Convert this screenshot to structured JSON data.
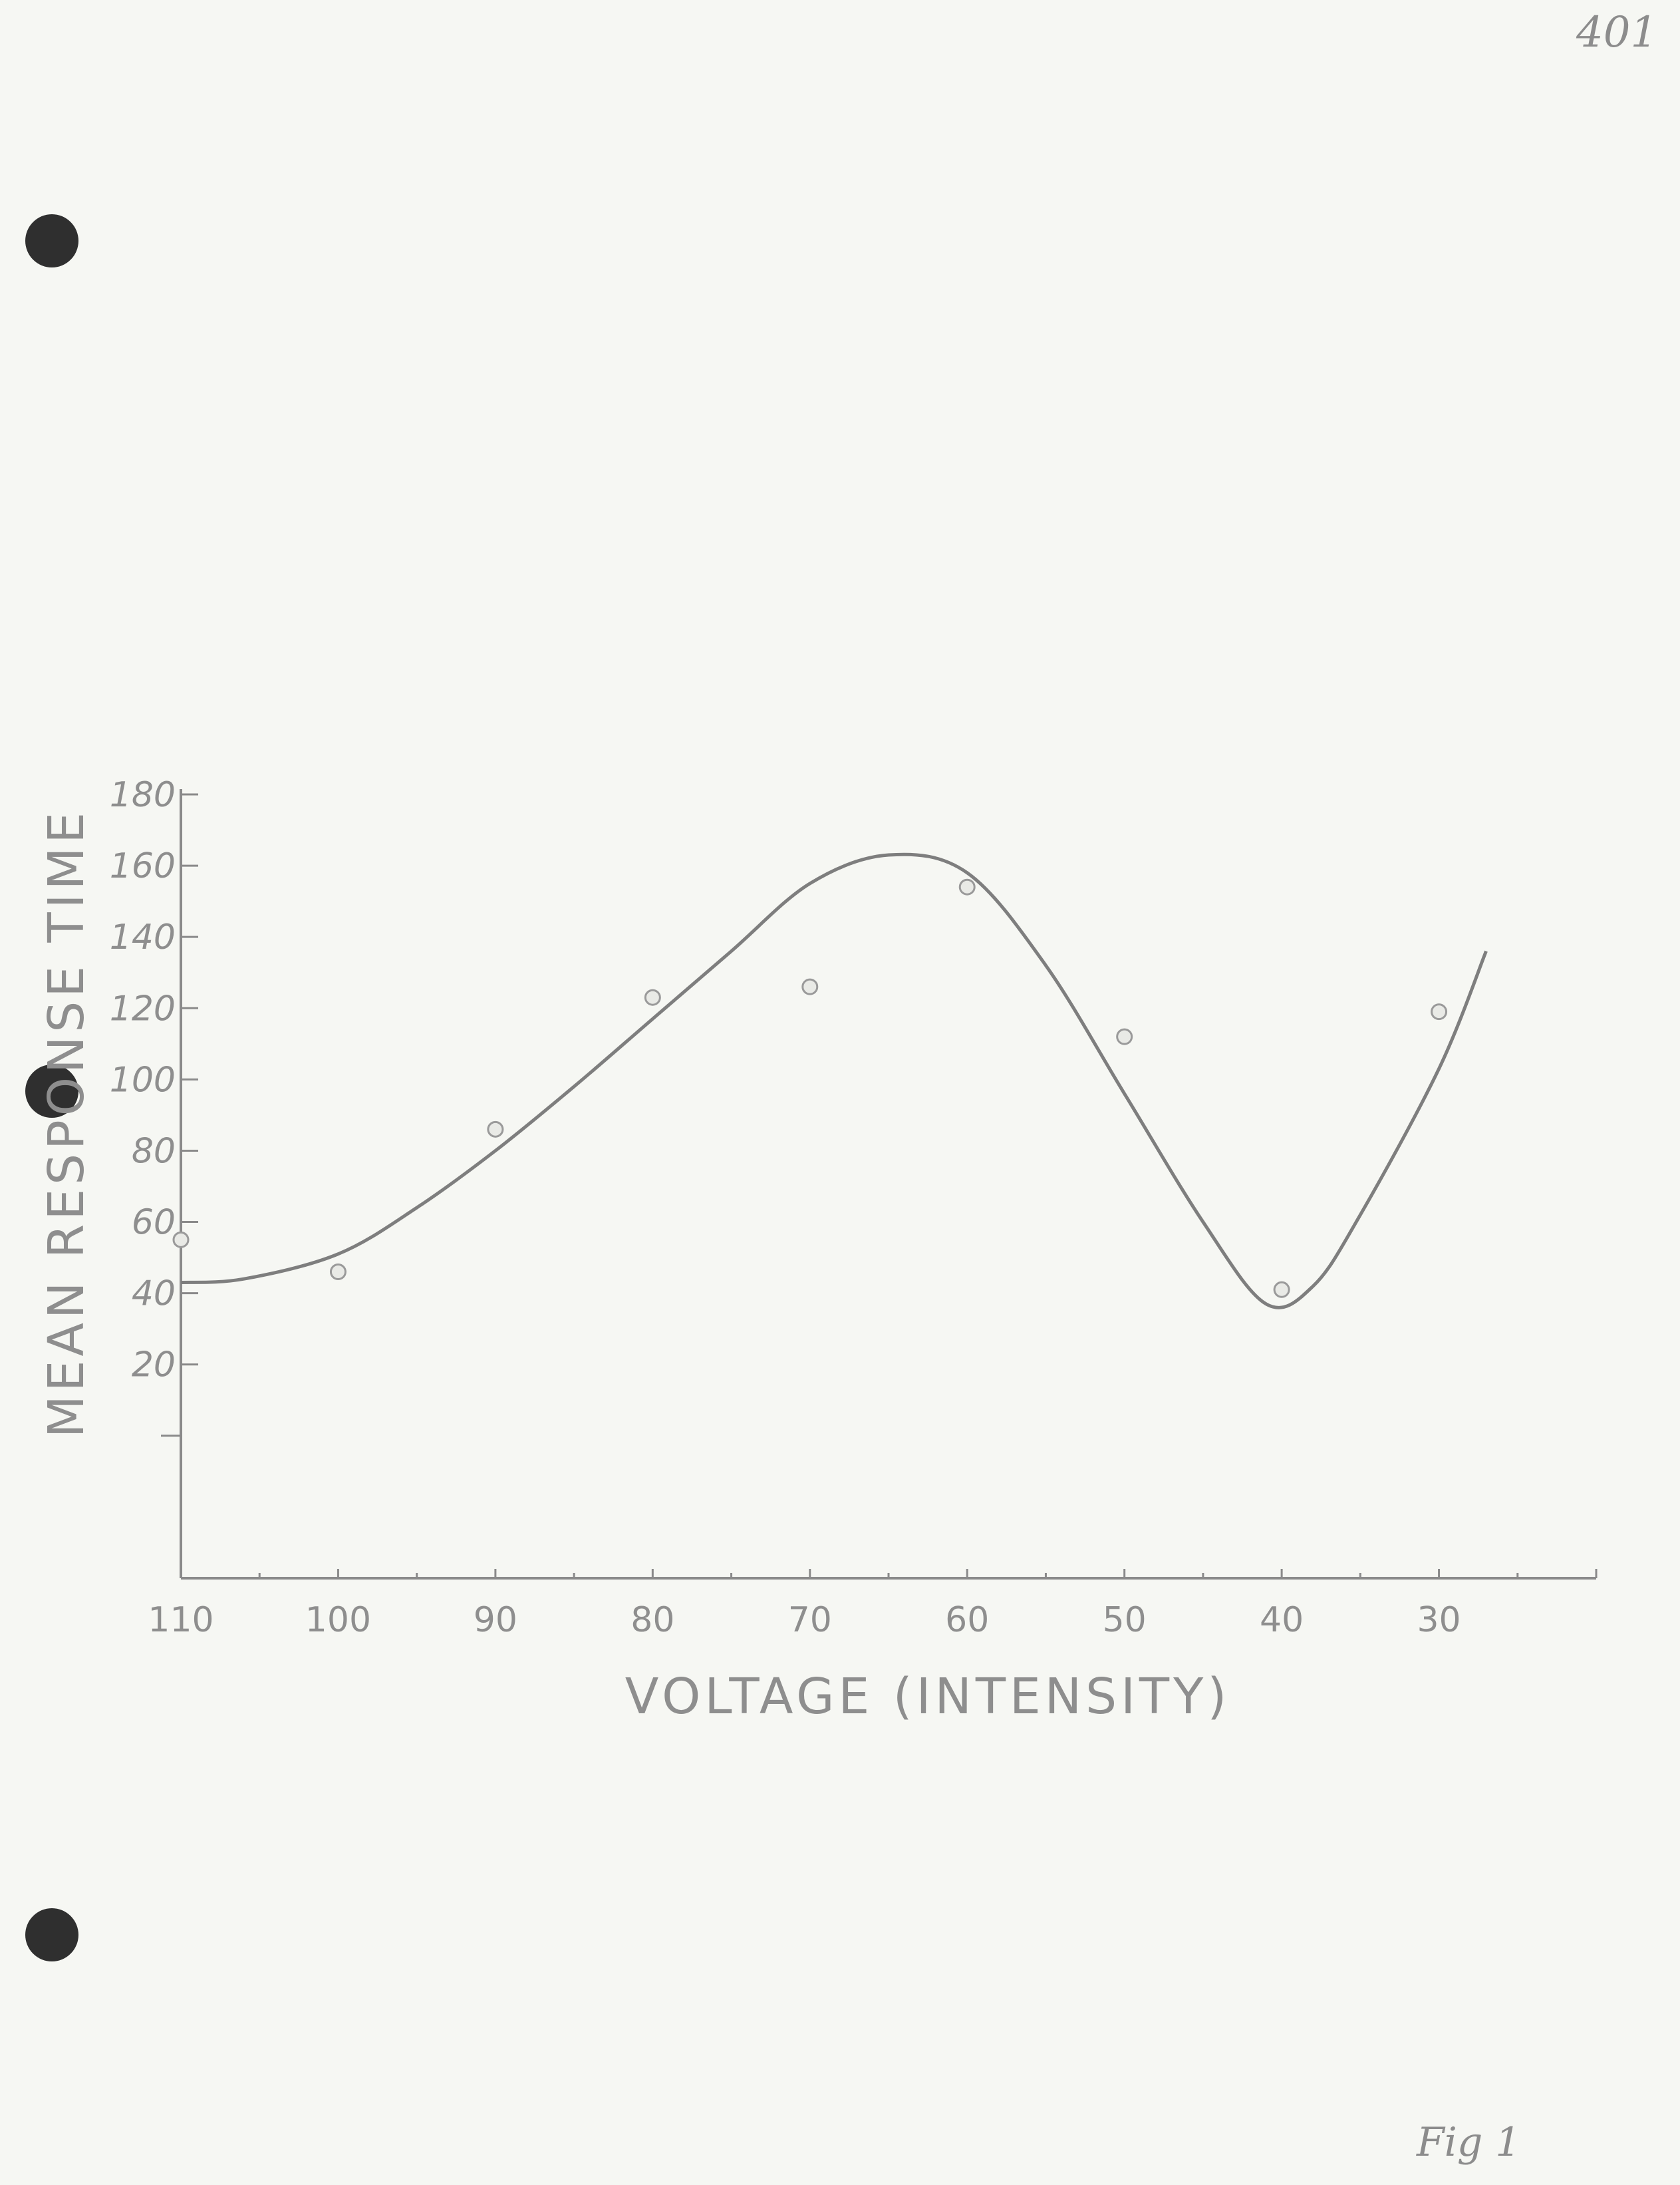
{
  "page": {
    "page_number": "401",
    "figure_label": "Fig 1"
  },
  "chart_data": {
    "type": "scatter",
    "title": "",
    "xlabel": "VOLTAGE (INTENSITY)",
    "ylabel": "MEAN RESPONSE TIME",
    "x_reversed": true,
    "xlim": [
      110,
      20
    ],
    "ylim": [
      -40,
      180
    ],
    "x_ticks": [
      110,
      100,
      90,
      80,
      70,
      60,
      50,
      40,
      30
    ],
    "x_tick_labels": [
      "110",
      "100",
      "90",
      "80",
      "70",
      "60",
      "50",
      "40",
      "30"
    ],
    "y_ticks": [
      20,
      40,
      60,
      80,
      100,
      120,
      140,
      160,
      180
    ],
    "y_tick_labels": [
      "20",
      "40",
      "60",
      "80",
      "100",
      "120",
      "140",
      "160",
      "180"
    ],
    "grid": false,
    "legend": "none",
    "series": [
      {
        "type": "scatter",
        "x": [
          110,
          100,
          90,
          80,
          70,
          60,
          50,
          40,
          30
        ],
        "y": [
          55,
          46,
          86,
          123,
          126,
          154,
          112,
          41,
          119
        ]
      },
      {
        "type": "line",
        "smooth": true,
        "x": [
          110,
          106,
          100,
          95,
          90,
          85,
          80,
          75,
          70,
          65,
          60,
          55,
          50,
          45,
          41,
          38,
          35,
          30,
          27
        ],
        "y": [
          43,
          44,
          51,
          64,
          80,
          98,
          117,
          136,
          155,
          163,
          158,
          132,
          96,
          60,
          37,
          42,
          62,
          103,
          136
        ]
      }
    ]
  }
}
